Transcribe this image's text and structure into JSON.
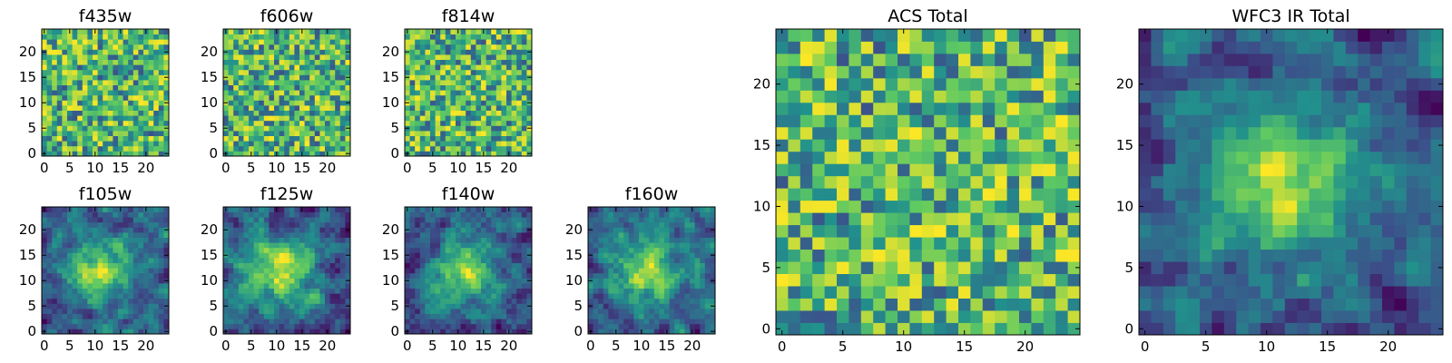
{
  "chart_data": [
    {
      "type": "heatmap",
      "title": "f435w",
      "xticks": [
        "0",
        "5",
        "10",
        "15",
        "20"
      ],
      "yticks": [
        "0",
        "5",
        "10",
        "15",
        "20"
      ],
      "xlim": [
        -0.5,
        24.5
      ],
      "ylim": [
        -0.5,
        24.5
      ],
      "grid_size": 25,
      "pattern": "noise",
      "seed": 11
    },
    {
      "type": "heatmap",
      "title": "f606w",
      "xticks": [
        "0",
        "5",
        "10",
        "15",
        "20"
      ],
      "yticks": [
        "0",
        "5",
        "10",
        "15",
        "20"
      ],
      "xlim": [
        -0.5,
        24.5
      ],
      "ylim": [
        -0.5,
        24.5
      ],
      "grid_size": 25,
      "pattern": "noise",
      "seed": 23
    },
    {
      "type": "heatmap",
      "title": "f814w",
      "xticks": [
        "0",
        "5",
        "10",
        "15",
        "20"
      ],
      "yticks": [
        "0",
        "5",
        "10",
        "15",
        "20"
      ],
      "xlim": [
        -0.5,
        24.5
      ],
      "ylim": [
        -0.5,
        24.5
      ],
      "grid_size": 25,
      "pattern": "noise",
      "seed": 37
    },
    {
      "type": "heatmap",
      "title": "f105w",
      "xticks": [
        "0",
        "5",
        "10",
        "15",
        "20"
      ],
      "yticks": [
        "0",
        "5",
        "10",
        "15",
        "20"
      ],
      "xlim": [
        -0.5,
        24.5
      ],
      "ylim": [
        -0.5,
        24.5
      ],
      "grid_size": 25,
      "pattern": "blob",
      "seed": 41
    },
    {
      "type": "heatmap",
      "title": "f125w",
      "xticks": [
        "0",
        "5",
        "10",
        "15",
        "20"
      ],
      "yticks": [
        "0",
        "5",
        "10",
        "15",
        "20"
      ],
      "xlim": [
        -0.5,
        24.5
      ],
      "ylim": [
        -0.5,
        24.5
      ],
      "grid_size": 25,
      "pattern": "blob",
      "seed": 53
    },
    {
      "type": "heatmap",
      "title": "f140w",
      "xticks": [
        "0",
        "5",
        "10",
        "15",
        "20"
      ],
      "yticks": [
        "0",
        "5",
        "10",
        "15",
        "20"
      ],
      "xlim": [
        -0.5,
        24.5
      ],
      "ylim": [
        -0.5,
        24.5
      ],
      "grid_size": 25,
      "pattern": "blob",
      "seed": 67
    },
    {
      "type": "heatmap",
      "title": "f160w",
      "xticks": [
        "0",
        "5",
        "10",
        "15",
        "20"
      ],
      "yticks": [
        "0",
        "5",
        "10",
        "15",
        "20"
      ],
      "xlim": [
        -0.5,
        24.5
      ],
      "ylim": [
        -0.5,
        24.5
      ],
      "grid_size": 25,
      "pattern": "blob",
      "seed": 79
    },
    {
      "type": "heatmap",
      "title": "ACS Total",
      "xticks": [
        "0",
        "5",
        "10",
        "15",
        "20"
      ],
      "yticks": [
        "0",
        "5",
        "10",
        "15",
        "20"
      ],
      "xlim": [
        -0.5,
        24.5
      ],
      "ylim": [
        -0.5,
        24.5
      ],
      "grid_size": 25,
      "pattern": "noise",
      "seed": 97
    },
    {
      "type": "heatmap",
      "title": "WFC3 IR Total",
      "xticks": [
        "0",
        "5",
        "10",
        "15",
        "20"
      ],
      "yticks": [
        "0",
        "5",
        "10",
        "15",
        "20"
      ],
      "xlim": [
        -0.5,
        24.5
      ],
      "ylim": [
        -0.5,
        24.5
      ],
      "grid_size": 25,
      "pattern": "blob",
      "seed": 113
    }
  ],
  "colormap": {
    "name": "viridis",
    "stops": [
      "#440154",
      "#3b528b",
      "#21918c",
      "#5ec962",
      "#fde725"
    ]
  }
}
